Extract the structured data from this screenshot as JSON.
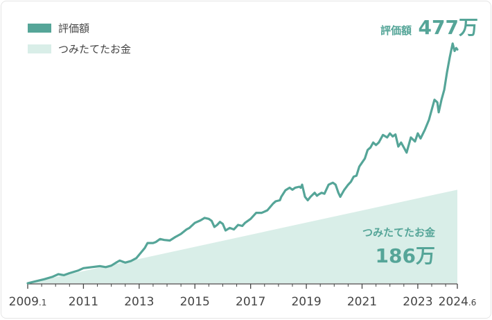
{
  "legend": [
    {
      "label": "評価額",
      "color": "#55a598"
    },
    {
      "label": "つみたてたお金",
      "color": "#d9eee8"
    }
  ],
  "callouts": {
    "valuation": {
      "label": "評価額",
      "value": "477万"
    },
    "contribution": {
      "label": "つみたてたお金",
      "value": "186万"
    }
  },
  "chart_data": {
    "type": "line",
    "x_tick_labels": [
      {
        "main": "2009",
        "sub": ".1",
        "x": 2009.0
      },
      {
        "main": "2011",
        "sub": "",
        "x": 2011.0
      },
      {
        "main": "2013",
        "sub": "",
        "x": 2013.0
      },
      {
        "main": "2015",
        "sub": "",
        "x": 2015.0
      },
      {
        "main": "2017",
        "sub": "",
        "x": 2017.0
      },
      {
        "main": "2019",
        "sub": "",
        "x": 2019.0
      },
      {
        "main": "2021",
        "sub": "",
        "x": 2021.0
      },
      {
        "main": "2023",
        "sub": "",
        "x": 2023.0
      },
      {
        "main": "2024",
        "sub": ".6",
        "x": 2024.42
      }
    ],
    "x_range": [
      2009.0,
      2024.42
    ],
    "y_range": [
      0,
      500
    ],
    "series": [
      {
        "name": "評価額",
        "type": "line",
        "color": "#55a598",
        "points": [
          [
            2009.0,
            0
          ],
          [
            2009.3,
            4
          ],
          [
            2009.6,
            8
          ],
          [
            2009.9,
            13
          ],
          [
            2010.1,
            18
          ],
          [
            2010.3,
            16
          ],
          [
            2010.5,
            20
          ],
          [
            2010.8,
            25
          ],
          [
            2011.0,
            30
          ],
          [
            2011.3,
            32
          ],
          [
            2011.6,
            34
          ],
          [
            2011.8,
            32
          ],
          [
            2012.0,
            35
          ],
          [
            2012.2,
            42
          ],
          [
            2012.3,
            45
          ],
          [
            2012.5,
            41
          ],
          [
            2012.7,
            44
          ],
          [
            2012.9,
            50
          ],
          [
            2013.05,
            60
          ],
          [
            2013.2,
            70
          ],
          [
            2013.3,
            80
          ],
          [
            2013.5,
            80
          ],
          [
            2013.6,
            82
          ],
          [
            2013.75,
            88
          ],
          [
            2013.9,
            86
          ],
          [
            2014.1,
            85
          ],
          [
            2014.3,
            92
          ],
          [
            2014.5,
            98
          ],
          [
            2014.7,
            107
          ],
          [
            2014.8,
            110
          ],
          [
            2015.0,
            120
          ],
          [
            2015.2,
            125
          ],
          [
            2015.35,
            130
          ],
          [
            2015.5,
            128
          ],
          [
            2015.6,
            124
          ],
          [
            2015.7,
            112
          ],
          [
            2015.8,
            116
          ],
          [
            2015.9,
            122
          ],
          [
            2016.0,
            118
          ],
          [
            2016.1,
            105
          ],
          [
            2016.25,
            110
          ],
          [
            2016.4,
            107
          ],
          [
            2016.55,
            116
          ],
          [
            2016.7,
            114
          ],
          [
            2016.8,
            120
          ],
          [
            2017.0,
            128
          ],
          [
            2017.2,
            140
          ],
          [
            2017.4,
            140
          ],
          [
            2017.6,
            145
          ],
          [
            2017.8,
            158
          ],
          [
            2017.9,
            163
          ],
          [
            2018.05,
            165
          ],
          [
            2018.1,
            172
          ],
          [
            2018.25,
            185
          ],
          [
            2018.4,
            190
          ],
          [
            2018.5,
            186
          ],
          [
            2018.6,
            190
          ],
          [
            2018.75,
            192
          ],
          [
            2018.8,
            190
          ],
          [
            2018.85,
            196
          ],
          [
            2018.95,
            172
          ],
          [
            2019.05,
            165
          ],
          [
            2019.15,
            172
          ],
          [
            2019.3,
            180
          ],
          [
            2019.38,
            174
          ],
          [
            2019.45,
            177
          ],
          [
            2019.55,
            180
          ],
          [
            2019.65,
            178
          ],
          [
            2019.8,
            196
          ],
          [
            2019.95,
            200
          ],
          [
            2020.05,
            196
          ],
          [
            2020.15,
            180
          ],
          [
            2020.22,
            172
          ],
          [
            2020.35,
            185
          ],
          [
            2020.5,
            196
          ],
          [
            2020.6,
            202
          ],
          [
            2020.7,
            212
          ],
          [
            2020.8,
            214
          ],
          [
            2020.9,
            232
          ],
          [
            2021.0,
            240
          ],
          [
            2021.1,
            248
          ],
          [
            2021.2,
            265
          ],
          [
            2021.3,
            270
          ],
          [
            2021.4,
            280
          ],
          [
            2021.5,
            275
          ],
          [
            2021.6,
            280
          ],
          [
            2021.75,
            295
          ],
          [
            2021.9,
            290
          ],
          [
            2022.0,
            298
          ],
          [
            2022.1,
            292
          ],
          [
            2022.2,
            296
          ],
          [
            2022.3,
            272
          ],
          [
            2022.4,
            280
          ],
          [
            2022.5,
            270
          ],
          [
            2022.6,
            260
          ],
          [
            2022.75,
            290
          ],
          [
            2022.9,
            282
          ],
          [
            2023.0,
            298
          ],
          [
            2023.1,
            288
          ],
          [
            2023.25,
            305
          ],
          [
            2023.4,
            325
          ],
          [
            2023.5,
            345
          ],
          [
            2023.6,
            365
          ],
          [
            2023.7,
            360
          ],
          [
            2023.75,
            340
          ],
          [
            2023.85,
            365
          ],
          [
            2023.95,
            385
          ],
          [
            2024.05,
            420
          ],
          [
            2024.15,
            450
          ],
          [
            2024.25,
            477
          ],
          [
            2024.32,
            462
          ],
          [
            2024.38,
            468
          ],
          [
            2024.42,
            465
          ]
        ]
      },
      {
        "name": "つみたてたお金",
        "type": "area",
        "color": "#d9eee8",
        "points": [
          [
            2009.0,
            0
          ],
          [
            2024.42,
            186
          ]
        ]
      }
    ]
  }
}
